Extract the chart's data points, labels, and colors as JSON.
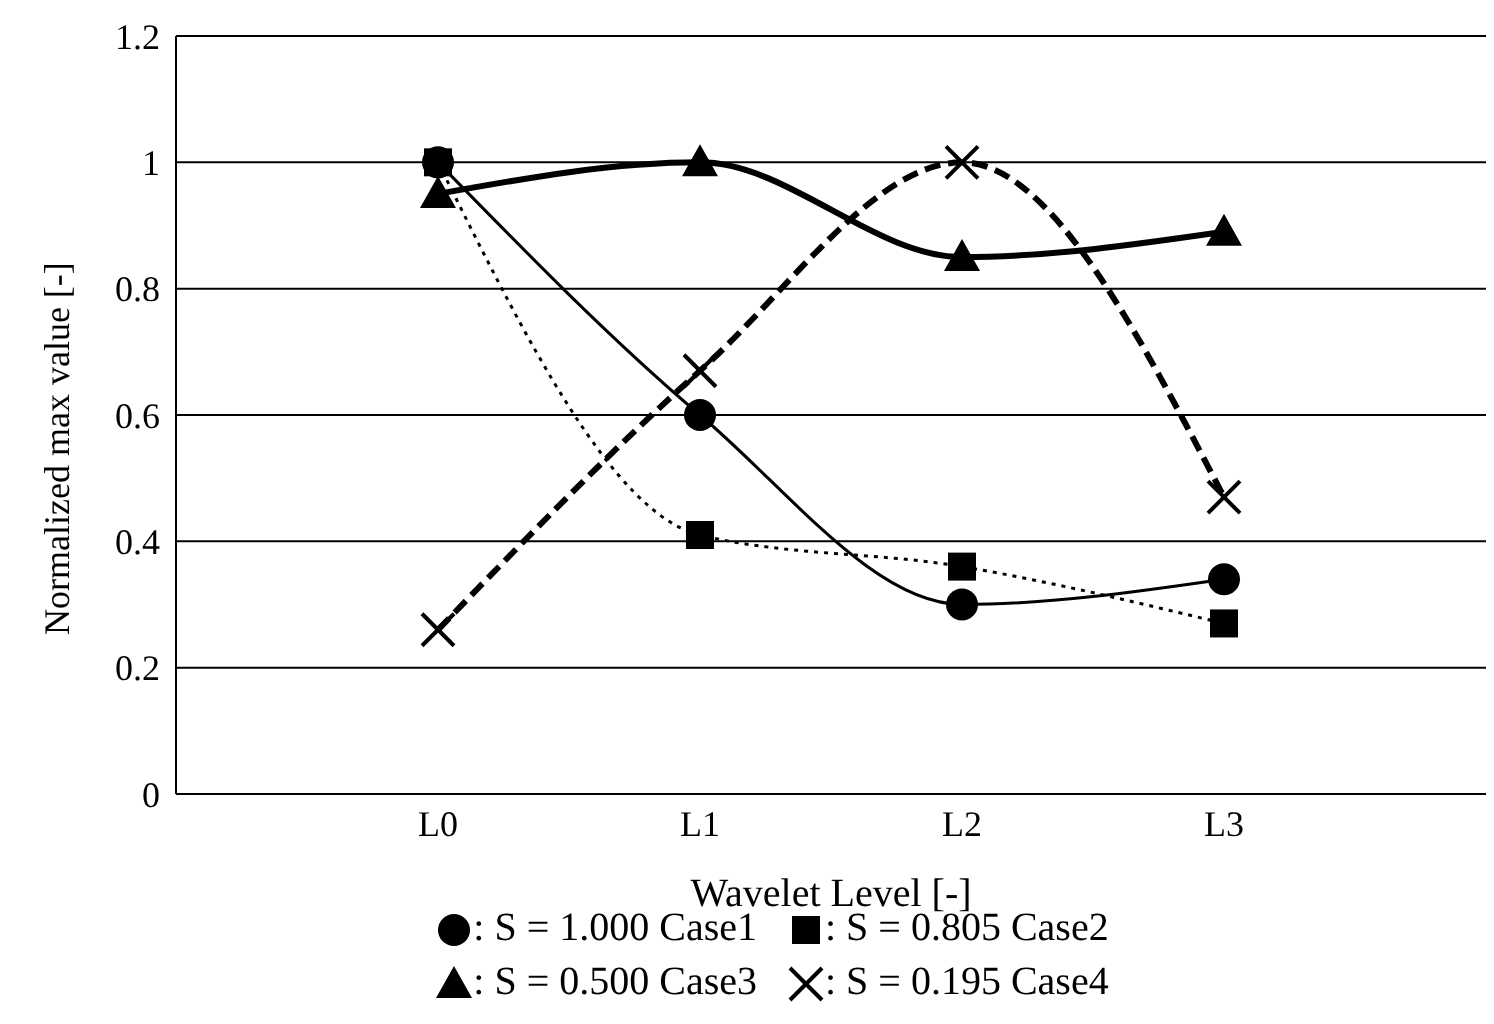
{
  "chart_data": {
    "type": "line",
    "xlabel": "Wavelet Level [-]",
    "ylabel": "Normalized max value [-]",
    "categories": [
      null,
      "L0",
      "L1",
      "L2",
      "L3",
      null
    ],
    "series": [
      {
        "name": ": S = 1.000 Case1",
        "color": "#000000",
        "marker": "circle",
        "line_style": "solid",
        "values": [
          null,
          1.0,
          0.6,
          0.3,
          0.34,
          null
        ]
      },
      {
        "name": ": S = 0.805 Case2",
        "color": "#000000",
        "marker": "square",
        "line_style": "dotted",
        "values": [
          null,
          1.0,
          0.41,
          0.36,
          0.27,
          null
        ]
      },
      {
        "name": ": S = 0.500 Case3",
        "color": "#000000",
        "marker": "triangle",
        "line_style": "solid",
        "values": [
          null,
          0.95,
          1.0,
          0.85,
          0.89,
          null
        ]
      },
      {
        "name": ": S = 0.195 Case4",
        "color": "#000000",
        "marker": "cross",
        "line_style": "dashed",
        "values": [
          null,
          0.26,
          0.67,
          1.0,
          0.47,
          null
        ]
      }
    ],
    "ylim": [
      0,
      1.2
    ],
    "yticks": [
      0,
      0.2,
      0.4,
      0.6,
      0.8,
      1,
      1.2
    ],
    "grid": "y",
    "legend": "bottom"
  }
}
